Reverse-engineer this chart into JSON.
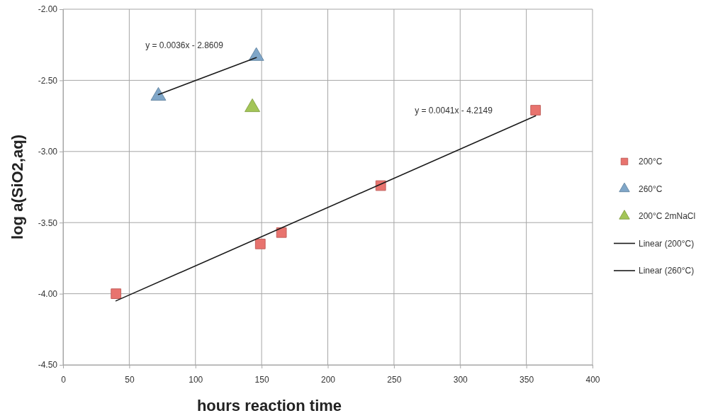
{
  "chart_data": {
    "type": "scatter",
    "xlabel": "hours reaction time",
    "ylabel": "log a(SiO2,aq)",
    "xlim": [
      0,
      400
    ],
    "xticks": [
      0,
      50,
      100,
      150,
      200,
      250,
      300,
      350,
      400
    ],
    "ylim": [
      -4.5,
      -2.0
    ],
    "yticks": [
      {
        "value": -4.5,
        "label": "-4.50"
      },
      {
        "value": -4.0,
        "label": "-4.00"
      },
      {
        "value": -3.5,
        "label": "-3.50"
      },
      {
        "value": -3.0,
        "label": "-3.00"
      },
      {
        "value": -2.5,
        "label": "-2.50"
      },
      {
        "value": -2.0,
        "label": "-2.00"
      }
    ],
    "grid": true,
    "legend": "right",
    "series": [
      {
        "name": "200°C",
        "marker": "square",
        "color": "#e8736e",
        "x": [
          40,
          149,
          165,
          240,
          357
        ],
        "values": [
          -4.0,
          -3.65,
          -3.57,
          -3.24,
          -2.71
        ]
      },
      {
        "name": "260°C",
        "marker": "triangle",
        "color": "#7fa6c8",
        "x": [
          72,
          146
        ],
        "values": [
          -2.61,
          -2.33
        ]
      },
      {
        "name": "200°C 2mNaCl",
        "marker": "triangle",
        "color": "#a3c557",
        "x": [
          143
        ],
        "values": [
          -2.69
        ]
      },
      {
        "name": "Linear (200°C)",
        "type": "line",
        "marker": "none",
        "color": "#1a1a1a",
        "x": [
          40,
          357
        ],
        "values": [
          -4.05,
          -2.75
        ]
      },
      {
        "name": "Linear (260°C)",
        "type": "line",
        "marker": "none",
        "color": "#1a1a1a",
        "x": [
          72,
          146
        ],
        "values": [
          -2.6,
          -2.34
        ]
      }
    ],
    "annotations": [
      "y = 0.0036x - 2.8609",
      "y = 0.0041x - 4.2149"
    ]
  }
}
